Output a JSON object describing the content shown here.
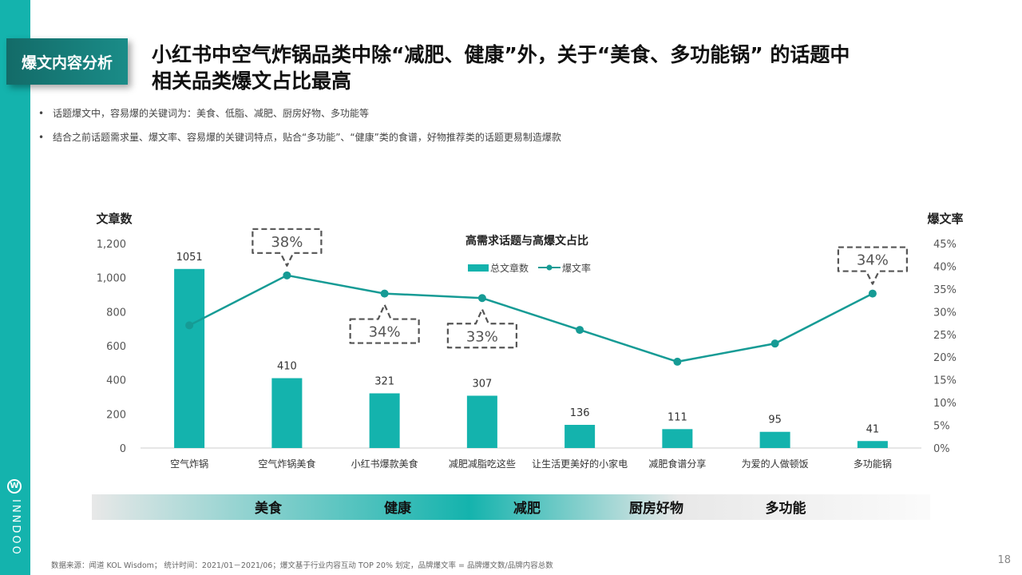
{
  "section_tag": "爆文内容分析",
  "headline": {
    "line1": "小红书中空气炸锅品类中除“减肥、健康”外，关于“美食、多功能锅” 的话题中",
    "line2": "相关品类爆文占比最高"
  },
  "bullets": [
    "话题爆文中，容易爆的关键词为：美食、低脂、减肥、厨房好物、多功能等",
    "结合之前话题需求量、爆文率、容易爆的关键词特点，贴合“多功能”、“健康”类的食谱，好物推荐类的话题更易制造爆款"
  ],
  "bullet_symbol": "•",
  "logo": {
    "word": "INNDOO",
    "mark": "W"
  },
  "chart_data": {
    "type": "bar",
    "title": "高需求话题与高爆文占比",
    "categories": [
      "空气炸锅",
      "空气炸锅美食",
      "小红书爆款美食",
      "减肥减脂吃这些",
      "让生活更美好的小家电",
      "减肥食谱分享",
      "为爱的人做顿饭",
      "多功能锅"
    ],
    "series": [
      {
        "name": "总文章数",
        "type": "bar",
        "axis": "left",
        "color": "#14b3ad",
        "values": [
          1051,
          410,
          321,
          307,
          136,
          111,
          95,
          41
        ]
      },
      {
        "name": "爆文率",
        "type": "line",
        "axis": "right",
        "color": "#169b95",
        "values": [
          0.27,
          0.38,
          0.34,
          0.33,
          0.26,
          0.19,
          0.23,
          0.34
        ]
      }
    ],
    "left_axis": {
      "label": "文章数",
      "ylim": [
        0,
        1200
      ],
      "ticks": [
        "0",
        "200",
        "400",
        "600",
        "800",
        "1,000",
        "1,200"
      ]
    },
    "right_axis": {
      "label": "爆文率",
      "ylim": [
        0,
        0.45
      ],
      "ticks": [
        "0%",
        "5%",
        "10%",
        "15%",
        "20%",
        "25%",
        "30%",
        "35%",
        "40%",
        "45%"
      ]
    },
    "bar_labels": [
      "1051",
      "410",
      "321",
      "307",
      "136",
      "111",
      "95",
      "41"
    ],
    "callouts": [
      {
        "category_index": 1,
        "text": "38%",
        "placement": "above"
      },
      {
        "category_index": 2,
        "text": "34%",
        "placement": "below"
      },
      {
        "category_index": 3,
        "text": "33%",
        "placement": "below"
      },
      {
        "category_index": 7,
        "text": "34%",
        "placement": "above"
      }
    ],
    "legend_position": "top-center",
    "grid": false,
    "keyword_band": {
      "labels": [
        "美食",
        "健康",
        "减肥",
        "厨房好物",
        "多功能"
      ],
      "colors": [
        "#e8e8e8",
        "#14b3ad"
      ]
    }
  },
  "footnote": "数据来源：闻道 KOL Wisdom； 统计时间：2021/01－2021/06；爆文基于行业内容互动 TOP 20% 划定，品牌爆文率 = 品牌爆文数/品牌内容总数",
  "page_number": "18"
}
